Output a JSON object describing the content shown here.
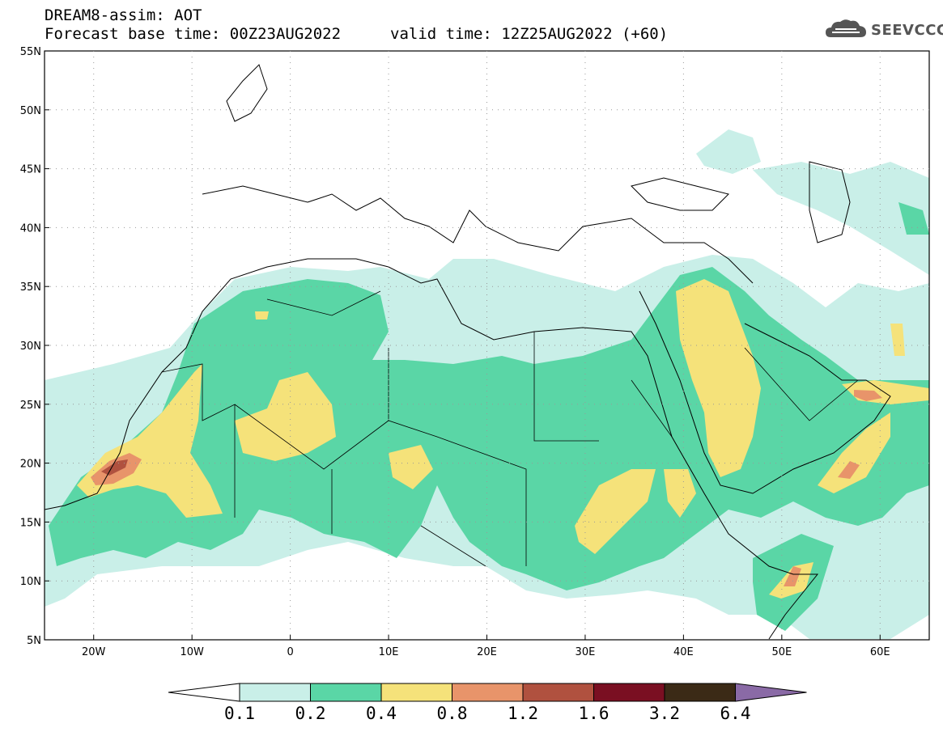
{
  "title": {
    "line1": "DREAM8-assim: AOT",
    "line2": "Forecast base time: 00Z23AUG2022",
    "line3": "valid time: 12Z25AUG2022 (+60)"
  },
  "logo": {
    "text": "SEEVCCC",
    "icon": "cloud-icon"
  },
  "map": {
    "lon_range": [
      -25,
      65
    ],
    "lat_range": [
      5,
      55
    ],
    "lat_ticks": [
      "5N",
      "10N",
      "15N",
      "20N",
      "25N",
      "30N",
      "35N",
      "40N",
      "45N",
      "50N",
      "55N"
    ],
    "lon_ticks": [
      "20W",
      "10W",
      "0",
      "10E",
      "20E",
      "30E",
      "40E",
      "50E",
      "60E"
    ]
  },
  "colorbar": {
    "labels": [
      "0.1",
      "0.2",
      "0.4",
      "0.8",
      "1.2",
      "1.6",
      "3.2",
      "6.4"
    ],
    "colors": [
      "#c9efe8",
      "#5ad6a6",
      "#f5e27a",
      "#e8946a",
      "#b0513f",
      "#7a0f22",
      "#3b2a16",
      "#8a6aa6"
    ]
  }
}
